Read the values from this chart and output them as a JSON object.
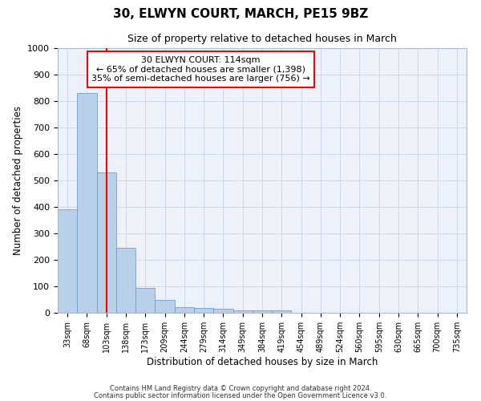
{
  "title1": "30, ELWYN COURT, MARCH, PE15 9BZ",
  "title2": "Size of property relative to detached houses in March",
  "xlabel": "Distribution of detached houses by size in March",
  "ylabel": "Number of detached properties",
  "annotation_line1": "30 ELWYN COURT: 114sqm",
  "annotation_line2": "← 65% of detached houses are smaller (1,398)",
  "annotation_line3": "35% of semi-detached houses are larger (756) →",
  "bar_labels": [
    "33sqm",
    "68sqm",
    "103sqm",
    "138sqm",
    "173sqm",
    "209sqm",
    "244sqm",
    "279sqm",
    "314sqm",
    "349sqm",
    "384sqm",
    "419sqm",
    "454sqm",
    "489sqm",
    "524sqm",
    "560sqm",
    "595sqm",
    "630sqm",
    "665sqm",
    "700sqm",
    "735sqm"
  ],
  "bar_values": [
    390,
    830,
    530,
    245,
    95,
    50,
    22,
    18,
    14,
    10,
    8,
    8,
    0,
    0,
    0,
    0,
    0,
    0,
    0,
    0,
    0
  ],
  "bar_color": "#b8d0ea",
  "bar_edge_color": "#6aa0cc",
  "vline_x": 2.0,
  "vline_color": "red",
  "ylim": [
    0,
    1000
  ],
  "yticks": [
    0,
    100,
    200,
    300,
    400,
    500,
    600,
    700,
    800,
    900,
    1000
  ],
  "grid_color": "#ccd8ee",
  "background_color": "#edf2fa",
  "footer1": "Contains HM Land Registry data © Crown copyright and database right 2024.",
  "footer2": "Contains public sector information licensed under the Open Government Licence v3.0."
}
